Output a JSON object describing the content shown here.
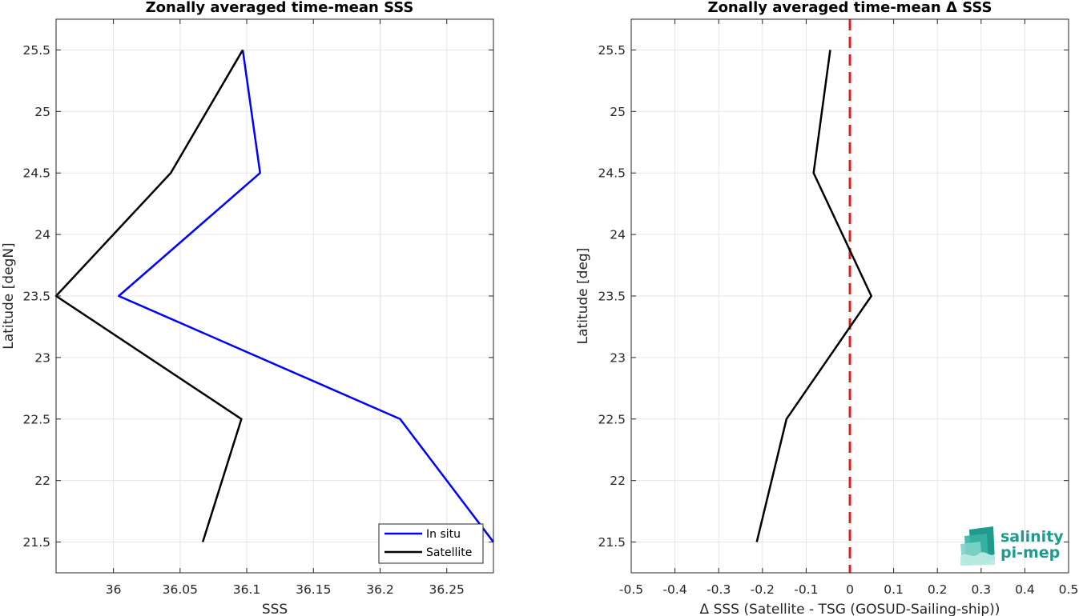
{
  "chart_data": [
    {
      "type": "line",
      "title": "Zonally averaged time-mean SSS",
      "xlabel": "SSS",
      "ylabel": "Latitude [degN]",
      "xlim": [
        35.957,
        36.285
      ],
      "ylim": [
        21.25,
        25.75
      ],
      "xticks": [
        "36",
        "36.05",
        "36.1",
        "36.15",
        "36.2",
        "36.25"
      ],
      "yticks": [
        "21.5",
        "22",
        "22.5",
        "23",
        "23.5",
        "24",
        "24.5",
        "25",
        "25.5"
      ],
      "grid": true,
      "legend_position": "bottom-right",
      "series": [
        {
          "name": "In situ",
          "color": "#0000ff",
          "points": [
            {
              "sss": 36.285,
              "lat": 21.5
            },
            {
              "sss": 36.215,
              "lat": 22.5
            },
            {
              "sss": 36.004,
              "lat": 23.5
            },
            {
              "sss": 36.11,
              "lat": 24.5
            },
            {
              "sss": 36.097,
              "lat": 25.5
            }
          ]
        },
        {
          "name": "Satellite",
          "color": "#000000",
          "points": [
            {
              "sss": 36.067,
              "lat": 21.5
            },
            {
              "sss": 36.096,
              "lat": 22.5
            },
            {
              "sss": 35.957,
              "lat": 23.5
            },
            {
              "sss": 36.043,
              "lat": 24.5
            },
            {
              "sss": 36.097,
              "lat": 25.5
            }
          ]
        }
      ]
    },
    {
      "type": "line",
      "title": "Zonally averaged time-mean Δ SSS",
      "xlabel": "Δ SSS (Satellite - TSG (GOSUD-Sailing-ship))",
      "ylabel": "Latitude [deg]",
      "xlim": [
        -0.5,
        0.5
      ],
      "ylim": [
        21.25,
        25.75
      ],
      "xticks": [
        "-0.5",
        "-0.4",
        "-0.3",
        "-0.2",
        "-0.1",
        "0",
        "0.1",
        "0.2",
        "0.3",
        "0.4",
        "0.5"
      ],
      "yticks": [
        "21.5",
        "22",
        "22.5",
        "23",
        "23.5",
        "24",
        "24.5",
        "25",
        "25.5"
      ],
      "grid": true,
      "reference_line": {
        "x": 0,
        "color": "#e02020",
        "style": "dashed"
      },
      "series": [
        {
          "color": "#000000",
          "points": [
            {
              "dsss": -0.213,
              "lat": 21.5
            },
            {
              "dsss": -0.145,
              "lat": 22.5
            },
            {
              "dsss": 0.049,
              "lat": 23.5
            },
            {
              "dsss": -0.083,
              "lat": 24.5
            },
            {
              "dsss": -0.045,
              "lat": 25.5
            }
          ]
        }
      ]
    }
  ],
  "logo": {
    "line1": "salinity",
    "line2": "pi-mep",
    "color": "#1f9a8c"
  }
}
